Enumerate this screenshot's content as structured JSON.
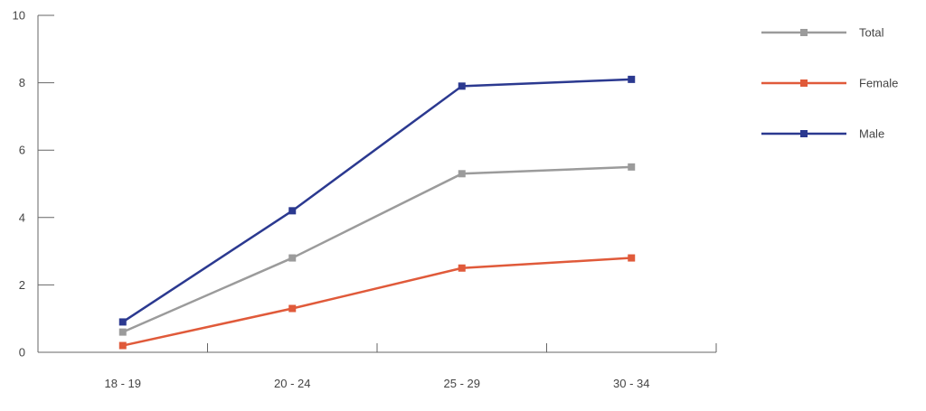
{
  "chart_data": {
    "type": "line",
    "categories": [
      "18 - 19",
      "20 - 24",
      "25 - 29",
      "30 - 34"
    ],
    "ylim": [
      0,
      10
    ],
    "yticks": [
      0,
      2,
      4,
      6,
      8,
      10
    ],
    "grid": false,
    "legend_position": "right",
    "title": "",
    "xlabel": "",
    "ylabel": "",
    "series": [
      {
        "name": "Total",
        "color": "#9b9b9b",
        "values": [
          0.6,
          2.8,
          5.3,
          5.5
        ]
      },
      {
        "name": "Female",
        "color": "#e05a3a",
        "values": [
          0.2,
          1.3,
          2.5,
          2.8
        ]
      },
      {
        "name": "Male",
        "color": "#2b3990",
        "values": [
          0.9,
          4.2,
          7.9,
          8.1
        ]
      }
    ]
  }
}
